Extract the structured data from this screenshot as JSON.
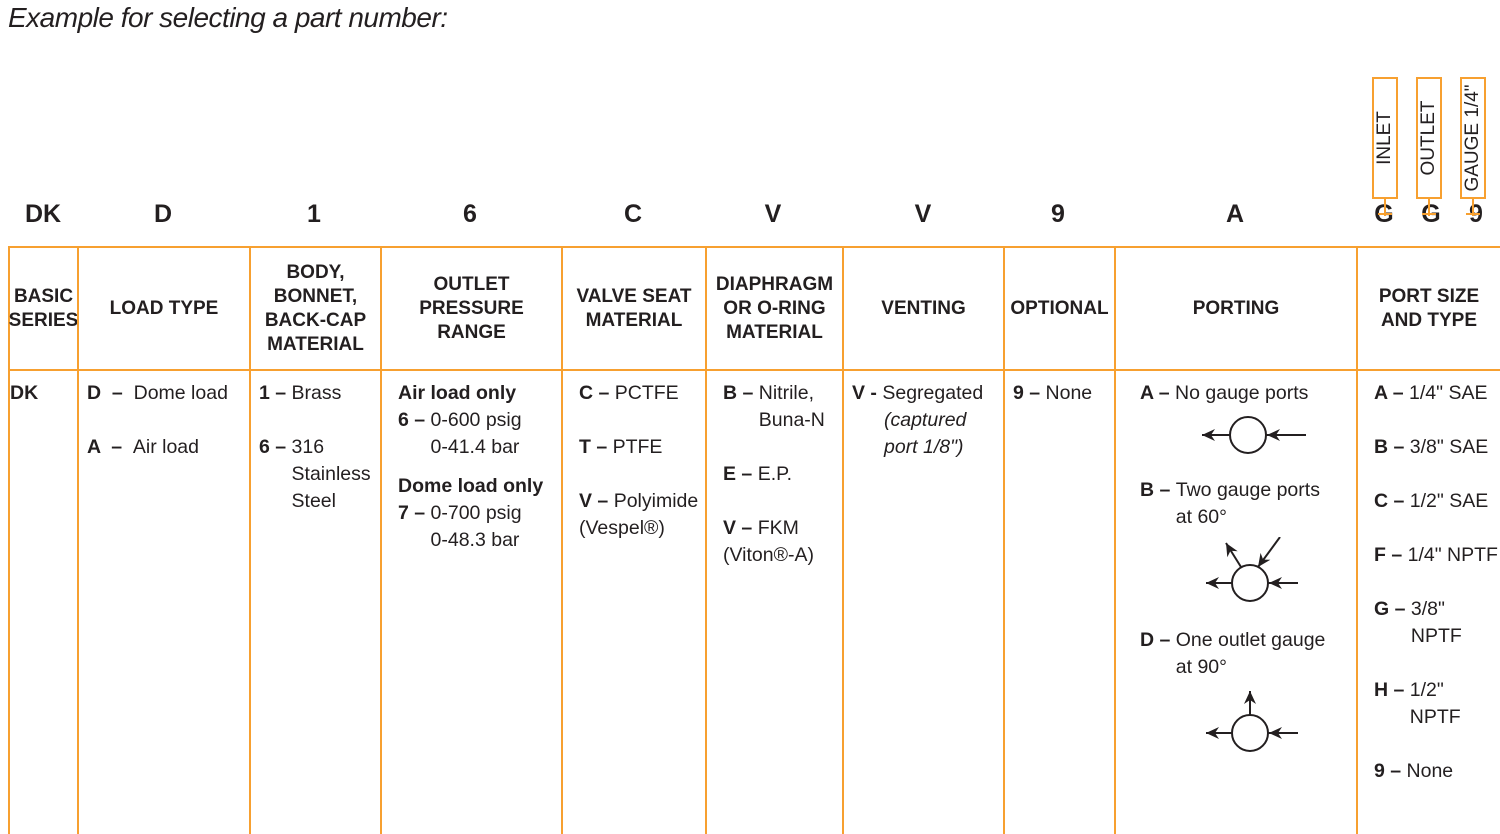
{
  "title": "Example for selecting a part number:",
  "accent_color": "#f7a030",
  "codes": [
    "DK",
    "D",
    "1",
    "6",
    "C",
    "V",
    "V",
    "9",
    "A",
    "G",
    "G",
    "9"
  ],
  "port_boxes": [
    "INLET",
    "OUTLET",
    "GAUGE 1/4\""
  ],
  "columns": [
    {
      "header": "BASIC\nSERIES",
      "options": [
        {
          "code": "",
          "text": "DK"
        }
      ]
    },
    {
      "header": "LOAD TYPE",
      "options": [
        {
          "code": "D  –  ",
          "text": "Dome load"
        },
        {
          "code": "A  –  ",
          "text": "Air load"
        }
      ]
    },
    {
      "header": "BODY,\nBONNET,\nBACK-CAP\nMATERIAL",
      "options": [
        {
          "code": "1 – ",
          "text": "Brass"
        },
        {
          "code": "6 – ",
          "text": "316\n  Stainless\n  Steel"
        }
      ]
    },
    {
      "header": "OUTLET\nPRESSURE\nRANGE",
      "groups": [
        {
          "label": "Air load only",
          "code": "6 – ",
          "text": "0-600 psig\n0-41.4 bar"
        },
        {
          "label": "Dome load only",
          "code": "7 – ",
          "text": "0-700 psig\n0-48.3 bar"
        }
      ]
    },
    {
      "header": "VALVE SEAT\nMATERIAL",
      "options": [
        {
          "code": "C – ",
          "text": "PCTFE"
        },
        {
          "code": "T – ",
          "text": "PTFE"
        },
        {
          "code": "V – ",
          "text": "Polyimide",
          "extra": "(Vespel®)"
        }
      ]
    },
    {
      "header": "DIAPHRAGM\nOR O-RING\nMATERIAL",
      "options": [
        {
          "code": "B – ",
          "text": "Nitrile,\nBuna-N"
        },
        {
          "code": "E – ",
          "text": "E.P."
        },
        {
          "code": "V – ",
          "text": "FKM",
          "extra": "(Viton®-A)"
        }
      ]
    },
    {
      "header": "VENTING",
      "options": [
        {
          "code": "V - ",
          "text": "Segregated",
          "note": "(captured\nport 1/8\")"
        }
      ]
    },
    {
      "header": "OPTIONAL",
      "options": [
        {
          "code": "9 – ",
          "text": "None"
        }
      ]
    },
    {
      "header": "PORTING",
      "options": [
        {
          "code": "A – ",
          "text": "No gauge ports",
          "diagram": "no-gauge"
        },
        {
          "code": "B – ",
          "text": "Two gauge ports\nat 60°",
          "diagram": "two-gauge-60"
        },
        {
          "code": "D – ",
          "text": "One outlet gauge\nat 90°",
          "diagram": "one-gauge-90"
        }
      ]
    },
    {
      "header": "PORT SIZE\nAND TYPE",
      "options": [
        {
          "code": "A – ",
          "text": "1/4\" SAE"
        },
        {
          "code": "B – ",
          "text": "3/8\" SAE"
        },
        {
          "code": "C – ",
          "text": "1/2\" SAE"
        },
        {
          "code": "F – ",
          "text": "1/4\" NPTF"
        },
        {
          "code": "G – ",
          "text": "3/8\" NPTF"
        },
        {
          "code": "H – ",
          "text": "1/2\" NPTF"
        },
        {
          "code": "9 – ",
          "text": "None"
        }
      ]
    }
  ]
}
